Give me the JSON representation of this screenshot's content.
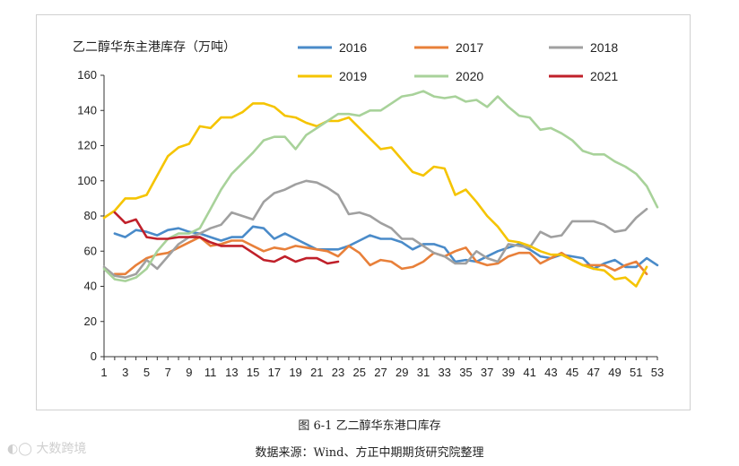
{
  "chart_data": {
    "type": "line",
    "title": "乙二醇华东主港库存（万吨）",
    "xlabel": "",
    "ylabel": "",
    "ylim": [
      0,
      160
    ],
    "yticks": [
      0,
      20,
      40,
      60,
      80,
      100,
      120,
      140,
      160
    ],
    "xlim": [
      1,
      53
    ],
    "xticks": [
      1,
      3,
      5,
      7,
      9,
      11,
      13,
      15,
      17,
      19,
      21,
      23,
      25,
      27,
      29,
      31,
      33,
      35,
      37,
      39,
      41,
      43,
      45,
      47,
      49,
      51,
      53
    ],
    "legend_position": "top-right",
    "series": [
      {
        "name": "2016",
        "color": "#4a8bc9",
        "x": [
          2,
          3,
          4,
          5,
          6,
          7,
          8,
          9,
          10,
          11,
          12,
          13,
          14,
          15,
          16,
          17,
          18,
          19,
          20,
          21,
          22,
          23,
          24,
          25,
          26,
          27,
          28,
          29,
          30,
          31,
          32,
          33,
          34,
          35,
          36,
          37,
          38,
          39,
          40,
          41,
          42,
          43,
          44,
          45,
          46,
          47,
          48,
          49,
          50,
          51,
          52,
          53
        ],
        "values": [
          70,
          68,
          72,
          71,
          69,
          72,
          73,
          71,
          70,
          68,
          66,
          68,
          68,
          74,
          73,
          67,
          70,
          67,
          64,
          61,
          61,
          61,
          63,
          66,
          69,
          67,
          67,
          65,
          61,
          64,
          64,
          62,
          54,
          55,
          54,
          57,
          60,
          62,
          64,
          61,
          57,
          56,
          58,
          57,
          56,
          50,
          53,
          55,
          51,
          51,
          56,
          52
        ]
      },
      {
        "name": "2017",
        "color": "#e8803a",
        "x": [
          2,
          3,
          4,
          5,
          6,
          7,
          8,
          9,
          10,
          11,
          12,
          13,
          14,
          15,
          16,
          17,
          18,
          19,
          20,
          21,
          22,
          23,
          24,
          25,
          26,
          27,
          28,
          29,
          30,
          31,
          32,
          33,
          34,
          35,
          36,
          37,
          38,
          39,
          40,
          41,
          42,
          43,
          44,
          45,
          46,
          47,
          48,
          49,
          50,
          51,
          52
        ],
        "values": [
          47,
          47,
          52,
          56,
          58,
          59,
          62,
          65,
          68,
          63,
          64,
          66,
          66,
          63,
          60,
          62,
          61,
          63,
          62,
          61,
          60,
          57,
          63,
          59,
          52,
          55,
          54,
          50,
          51,
          54,
          59,
          57,
          60,
          62,
          54,
          52,
          53,
          57,
          59,
          59,
          53,
          56,
          59,
          55,
          52,
          52,
          52,
          49,
          52,
          54,
          47
        ]
      },
      {
        "name": "2018",
        "color": "#a0a0a0",
        "x": [
          1,
          2,
          3,
          4,
          5,
          6,
          7,
          8,
          9,
          10,
          11,
          12,
          13,
          14,
          15,
          16,
          17,
          18,
          19,
          20,
          21,
          22,
          23,
          24,
          25,
          26,
          27,
          28,
          29,
          30,
          31,
          32,
          33,
          34,
          35,
          36,
          37,
          38,
          39,
          40,
          41,
          42,
          43,
          44,
          45,
          46,
          47,
          48,
          49,
          50,
          51,
          52
        ],
        "values": [
          51,
          46,
          45,
          47,
          55,
          50,
          57,
          64,
          68,
          70,
          73,
          75,
          82,
          80,
          78,
          88,
          93,
          95,
          98,
          100,
          99,
          96,
          92,
          81,
          82,
          80,
          76,
          73,
          67,
          67,
          63,
          59,
          57,
          53,
          53,
          60,
          56,
          54,
          64,
          63,
          62,
          71,
          68,
          69,
          77,
          77,
          77,
          75,
          71,
          72,
          79,
          84
        ]
      },
      {
        "name": "2019",
        "color": "#f5c400",
        "x": [
          1,
          2,
          3,
          4,
          5,
          6,
          7,
          8,
          9,
          10,
          11,
          12,
          13,
          14,
          15,
          16,
          17,
          18,
          19,
          20,
          21,
          22,
          23,
          24,
          25,
          26,
          27,
          28,
          29,
          30,
          31,
          32,
          33,
          34,
          35,
          36,
          37,
          38,
          39,
          40,
          41,
          42,
          43,
          44,
          45,
          46,
          47,
          48,
          49,
          50,
          51,
          52
        ],
        "values": [
          79,
          83,
          90,
          90,
          92,
          103,
          114,
          119,
          121,
          131,
          130,
          136,
          136,
          139,
          144,
          144,
          142,
          137,
          136,
          133,
          131,
          134,
          134,
          136,
          130,
          124,
          118,
          119,
          112,
          105,
          103,
          108,
          107,
          92,
          95,
          88,
          80,
          74,
          66,
          65,
          63,
          60,
          58,
          58,
          55,
          52,
          50,
          49,
          44,
          45,
          40,
          51
        ]
      },
      {
        "name": "2020",
        "color": "#a8d29a",
        "x": [
          1,
          2,
          3,
          4,
          5,
          6,
          7,
          8,
          9,
          10,
          11,
          12,
          13,
          14,
          15,
          16,
          17,
          18,
          19,
          20,
          21,
          22,
          23,
          24,
          25,
          26,
          27,
          28,
          29,
          30,
          31,
          32,
          33,
          34,
          35,
          36,
          37,
          38,
          39,
          40,
          41,
          42,
          43,
          44,
          45,
          46,
          47,
          48,
          49,
          50,
          51,
          52,
          53
        ],
        "values": [
          50,
          44,
          43,
          45,
          50,
          60,
          67,
          70,
          70,
          73,
          84,
          95,
          104,
          110,
          116,
          123,
          125,
          125,
          118,
          126,
          130,
          134,
          138,
          138,
          137,
          140,
          140,
          144,
          148,
          149,
          151,
          148,
          147,
          148,
          145,
          146,
          142,
          148,
          142,
          137,
          136,
          129,
          130,
          127,
          123,
          117,
          115,
          115,
          111,
          108,
          104,
          97,
          85
        ]
      },
      {
        "name": "2021",
        "color": "#c0202a",
        "x": [
          2,
          3,
          4,
          5,
          6,
          7,
          8,
          9,
          10,
          11,
          12,
          13,
          14,
          15,
          16,
          17,
          18,
          19,
          20,
          21,
          22,
          23
        ],
        "values": [
          82,
          76,
          78,
          68,
          67,
          67,
          68,
          68,
          68,
          65,
          63,
          63,
          63,
          59,
          55,
          54,
          57,
          54,
          56,
          56,
          53,
          54
        ]
      }
    ]
  },
  "caption": "图 6-1  乙二醇华东港口库存",
  "source": "数据来源：Wind、方正中期期货研究院整理",
  "watermark": "大数跨境"
}
